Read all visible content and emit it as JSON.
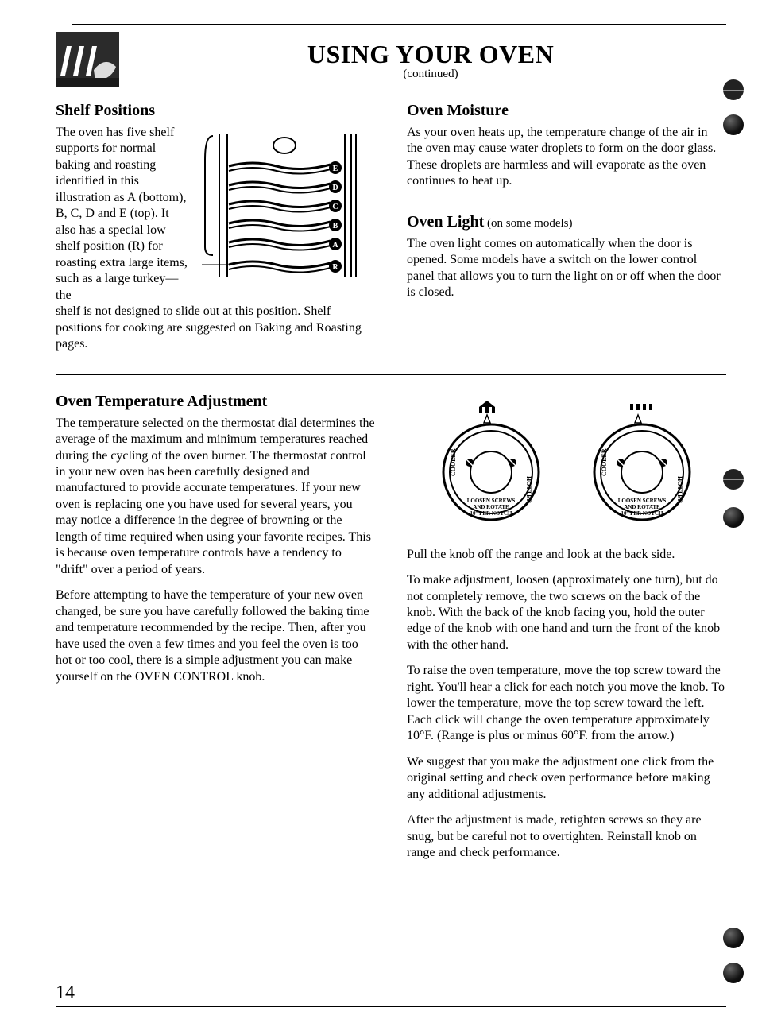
{
  "header": {
    "title": "USING YOUR OVEN",
    "continued": "(continued)"
  },
  "shelf": {
    "heading": "Shelf Positions",
    "para_lead": "The oven has five shelf supports for normal baking and roasting identified in this illustration as A (bottom), B, C, D and E (top). It also has a special low shelf position (R) for roasting extra large items, such as a large turkey—the",
    "para_tail": "shelf is not designed to slide out at this position. Shelf positions for cooking are suggested on Baking and Roasting pages.",
    "labels": [
      "E",
      "D",
      "C",
      "B",
      "A",
      "R"
    ]
  },
  "moisture": {
    "heading": "Oven Moisture",
    "para": "As your oven heats up, the temperature change of the air in the oven may cause water droplets to form on the door glass. These droplets are harmless and will evaporate as the oven continues to heat up."
  },
  "light": {
    "heading": "Oven Light",
    "sub": " (on some models)",
    "para": "The oven light comes on automatically when the door is opened. Some models have a switch on the lower control panel that allows you to turn the light on or off when the door is closed."
  },
  "temp": {
    "heading": "Oven Temperature Adjustment",
    "para1": "The temperature selected on the thermostat dial determines the average of the maximum and minimum temperatures reached during the cycling of the oven burner. The thermostat control in your new oven has been carefully designed and manufactured to provide accurate temperatures. If your new oven is replacing one you have used for several years, you may notice a difference in the degree of browning or the length of time required when using your favorite recipes. This is because oven temperature controls have a tendency to \"drift\" over a period of years.",
    "para2": "Before attempting to have the temperature of your new oven changed, be sure you have carefully followed the baking time and temperature recommended by the recipe. Then, after you have used the oven a few times and you feel the oven is too hot or too cool, there is a simple adjustment you can make yourself on the OVEN CONTROL knob."
  },
  "knob": {
    "cooler": "COOLER",
    "hotter": "HOTTER",
    "loosen": "LOOSEN SCREWS",
    "rotate": "AND ROTATE",
    "per": "10° PER NOTCH",
    "para1": "Pull the knob off the range and look at the back side.",
    "para2": "To make adjustment, loosen (approximately one turn), but do not completely remove, the two screws on the back of the knob. With the back of the knob facing you, hold the outer edge of the knob with one hand and turn the front of the knob with the other hand.",
    "para3": "To raise the oven temperature, move the top screw toward the right. You'll hear a click for each notch you move the knob. To lower the temperature, move the top screw toward the left. Each click will change the oven temperature approximately 10°F. (Range is plus or minus 60°F. from the arrow.)",
    "para4": "We suggest that you make the adjustment one click from the original setting and check oven performance before making any additional adjustments.",
    "para5": "After the adjustment is made, retighten screws so they are snug, but be careful not to overtighten. Reinstall knob on range and check performance."
  },
  "pagenum": "14"
}
